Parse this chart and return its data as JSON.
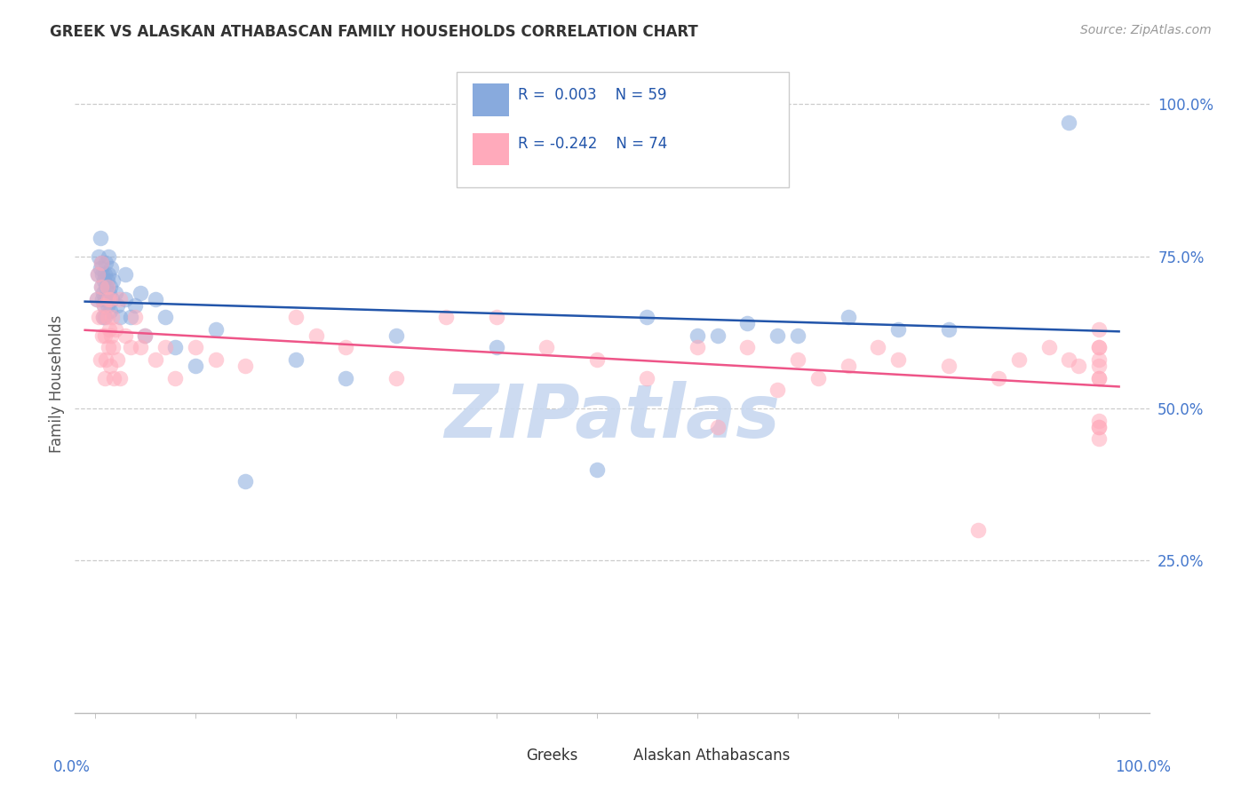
{
  "title": "GREEK VS ALASKAN ATHABASCAN FAMILY HOUSEHOLDS CORRELATION CHART",
  "source": "Source: ZipAtlas.com",
  "ylabel": "Family Households",
  "legend_greek_r": "0.003",
  "legend_greek_n": "59",
  "legend_athabascan_r": "-0.242",
  "legend_athabascan_n": "74",
  "greek_color": "#88AADD",
  "athabascan_color": "#FFAABB",
  "regression_greek_color": "#2255AA",
  "regression_athabascan_color": "#EE5588",
  "label_color": "#4477CC",
  "watermark_color": "#C8D8F0",
  "background_color": "#FFFFFF",
  "greek_points_x": [
    0.002,
    0.003,
    0.004,
    0.005,
    0.005,
    0.006,
    0.006,
    0.007,
    0.007,
    0.008,
    0.008,
    0.009,
    0.009,
    0.01,
    0.01,
    0.01,
    0.011,
    0.011,
    0.012,
    0.012,
    0.013,
    0.013,
    0.013,
    0.014,
    0.015,
    0.015,
    0.016,
    0.017,
    0.018,
    0.02,
    0.022,
    0.025,
    0.03,
    0.03,
    0.035,
    0.04,
    0.045,
    0.05,
    0.06,
    0.07,
    0.08,
    0.1,
    0.12,
    0.15,
    0.2,
    0.25,
    0.3,
    0.4,
    0.5,
    0.55,
    0.6,
    0.62,
    0.65,
    0.68,
    0.7,
    0.75,
    0.8,
    0.85,
    0.97
  ],
  "greek_points_y": [
    0.68,
    0.72,
    0.75,
    0.73,
    0.78,
    0.7,
    0.74,
    0.68,
    0.72,
    0.65,
    0.69,
    0.67,
    0.71,
    0.65,
    0.68,
    0.72,
    0.7,
    0.74,
    0.67,
    0.71,
    0.68,
    0.72,
    0.75,
    0.69,
    0.66,
    0.7,
    0.73,
    0.68,
    0.71,
    0.69,
    0.67,
    0.65,
    0.68,
    0.72,
    0.65,
    0.67,
    0.69,
    0.62,
    0.68,
    0.65,
    0.6,
    0.57,
    0.63,
    0.38,
    0.58,
    0.55,
    0.62,
    0.6,
    0.4,
    0.65,
    0.62,
    0.62,
    0.64,
    0.62,
    0.62,
    0.65,
    0.63,
    0.63,
    0.97
  ],
  "athabascan_points_x": [
    0.002,
    0.003,
    0.004,
    0.005,
    0.006,
    0.006,
    0.007,
    0.008,
    0.009,
    0.01,
    0.01,
    0.011,
    0.012,
    0.012,
    0.013,
    0.013,
    0.014,
    0.015,
    0.015,
    0.016,
    0.017,
    0.018,
    0.019,
    0.02,
    0.022,
    0.025,
    0.025,
    0.03,
    0.035,
    0.04,
    0.045,
    0.05,
    0.06,
    0.07,
    0.08,
    0.1,
    0.12,
    0.15,
    0.2,
    0.22,
    0.25,
    0.3,
    0.35,
    0.4,
    0.45,
    0.5,
    0.55,
    0.6,
    0.62,
    0.65,
    0.68,
    0.7,
    0.72,
    0.75,
    0.78,
    0.8,
    0.85,
    0.88,
    0.9,
    0.92,
    0.95,
    0.97,
    0.98,
    1.0,
    1.0,
    1.0,
    1.0,
    1.0,
    1.0,
    1.0,
    1.0,
    1.0,
    1.0,
    1.0
  ],
  "athabascan_points_y": [
    0.68,
    0.72,
    0.65,
    0.58,
    0.7,
    0.74,
    0.62,
    0.65,
    0.67,
    0.55,
    0.62,
    0.58,
    0.65,
    0.7,
    0.6,
    0.68,
    0.63,
    0.57,
    0.68,
    0.62,
    0.65,
    0.6,
    0.55,
    0.63,
    0.58,
    0.55,
    0.68,
    0.62,
    0.6,
    0.65,
    0.6,
    0.62,
    0.58,
    0.6,
    0.55,
    0.6,
    0.58,
    0.57,
    0.65,
    0.62,
    0.6,
    0.55,
    0.65,
    0.65,
    0.6,
    0.58,
    0.55,
    0.6,
    0.47,
    0.6,
    0.53,
    0.58,
    0.55,
    0.57,
    0.6,
    0.58,
    0.57,
    0.3,
    0.55,
    0.58,
    0.6,
    0.58,
    0.57,
    0.63,
    0.6,
    0.58,
    0.57,
    0.55,
    0.47,
    0.45,
    0.48,
    0.55,
    0.47,
    0.6
  ]
}
